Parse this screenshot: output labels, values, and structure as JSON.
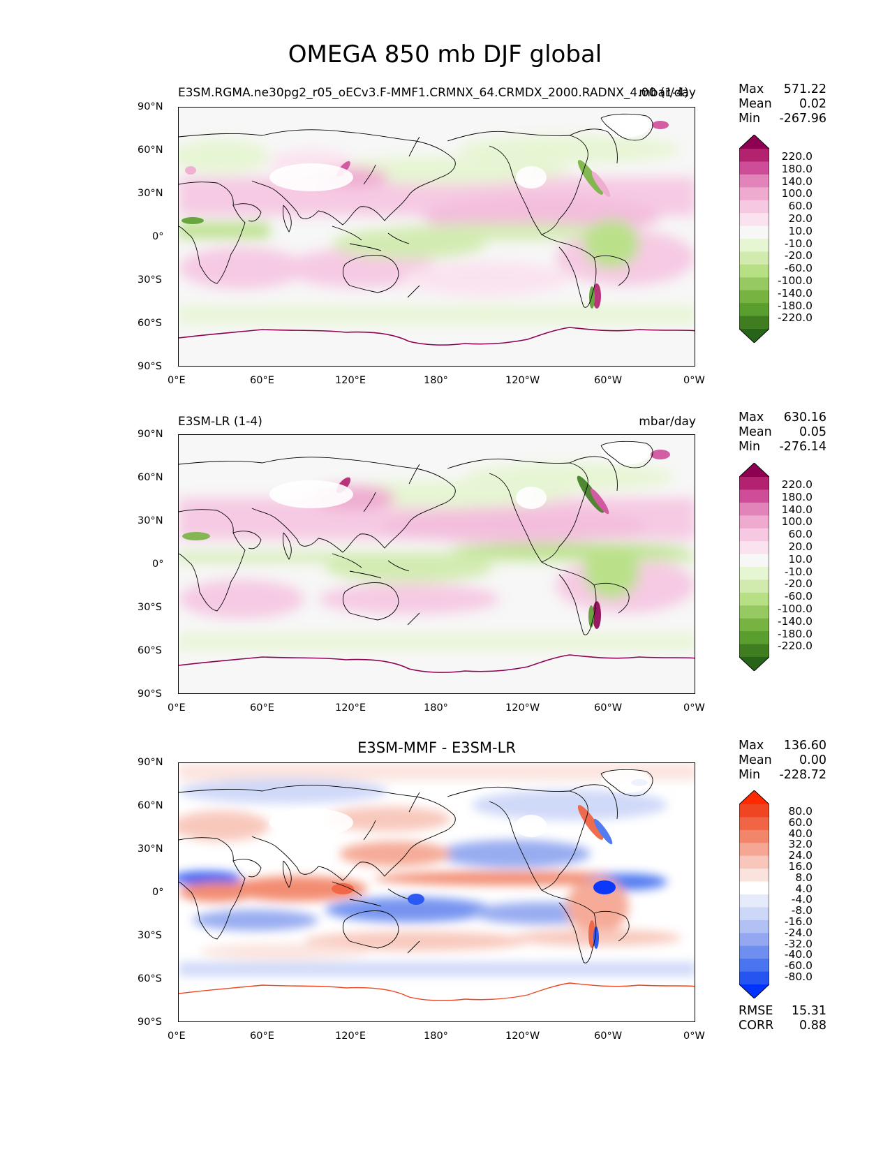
{
  "title": "OMEGA 850 mb DJF global",
  "x_ticks": [
    "0°E",
    "60°E",
    "120°E",
    "180°",
    "120°W",
    "60°W",
    "0°W"
  ],
  "y_ticks": [
    "90°N",
    "60°N",
    "30°N",
    "0°",
    "30°S",
    "60°S",
    "90°S"
  ],
  "colors": {
    "test_palette": [
      "#276419",
      "#3f7d20",
      "#5a9e2f",
      "#77b341",
      "#97c962",
      "#b7e085",
      "#d1ebaf",
      "#e6f5d2",
      "#f7f7f7",
      "#fbe2ef",
      "#f6c8e2",
      "#efaacf",
      "#e283b9",
      "#ce4d99",
      "#b3226e",
      "#8e0152"
    ],
    "diff_palette": [
      "#0033ff",
      "#2554f1",
      "#4a75f0",
      "#6f8ff0",
      "#93a8f0",
      "#b1c1f4",
      "#cdd7f8",
      "#e6ebfb",
      "#ffffff",
      "#fbe3dd",
      "#f8c6ba",
      "#f5a793",
      "#f2866a",
      "#f06546",
      "#f04522",
      "#ff2a00"
    ],
    "land": "#ffffff",
    "coast": "#000000"
  },
  "panels": [
    {
      "name": "test",
      "left_title": "E3SM.RGMA.ne30pg2_r05_oECv3.F-MMF1.CRMNX_64.CRMDX_2000.RADNX_4.00 (1-4)",
      "right_title": "mbar/day",
      "stats": {
        "max_label": "Max",
        "max": "571.22",
        "mean_label": "Mean",
        "mean": "0.02",
        "min_label": "Min",
        "min": "-267.96"
      },
      "colorbar_levels": [
        "220.0",
        "180.0",
        "140.0",
        "100.0",
        "60.0",
        "20.0",
        "10.0",
        "-10.0",
        "-20.0",
        "-60.0",
        "-100.0",
        "-140.0",
        "-180.0",
        "-220.0"
      ]
    },
    {
      "name": "reference",
      "left_title": "E3SM-LR (1-4)",
      "right_title": "mbar/day",
      "stats": {
        "max_label": "Max",
        "max": "630.16",
        "mean_label": "Mean",
        "mean": "0.05",
        "min_label": "Min",
        "min": "-276.14"
      },
      "colorbar_levels": [
        "220.0",
        "180.0",
        "140.0",
        "100.0",
        "60.0",
        "20.0",
        "10.0",
        "-10.0",
        "-20.0",
        "-60.0",
        "-100.0",
        "-140.0",
        "-180.0",
        "-220.0"
      ]
    },
    {
      "name": "difference",
      "center_title": "E3SM-MMF - E3SM-LR",
      "stats": {
        "max_label": "Max",
        "max": "136.60",
        "mean_label": "Mean",
        "mean": "0.00",
        "min_label": "Min",
        "min": "-228.72"
      },
      "colorbar_levels": [
        "80.0",
        "60.0",
        "40.0",
        "32.0",
        "24.0",
        "16.0",
        "8.0",
        "4.0",
        "-4.0",
        "-8.0",
        "-16.0",
        "-24.0",
        "-32.0",
        "-40.0",
        "-60.0",
        "-80.0"
      ],
      "metrics": {
        "rmse_label": "RMSE",
        "rmse": "15.31",
        "corr_label": "CORR",
        "corr": "0.88"
      }
    }
  ]
}
